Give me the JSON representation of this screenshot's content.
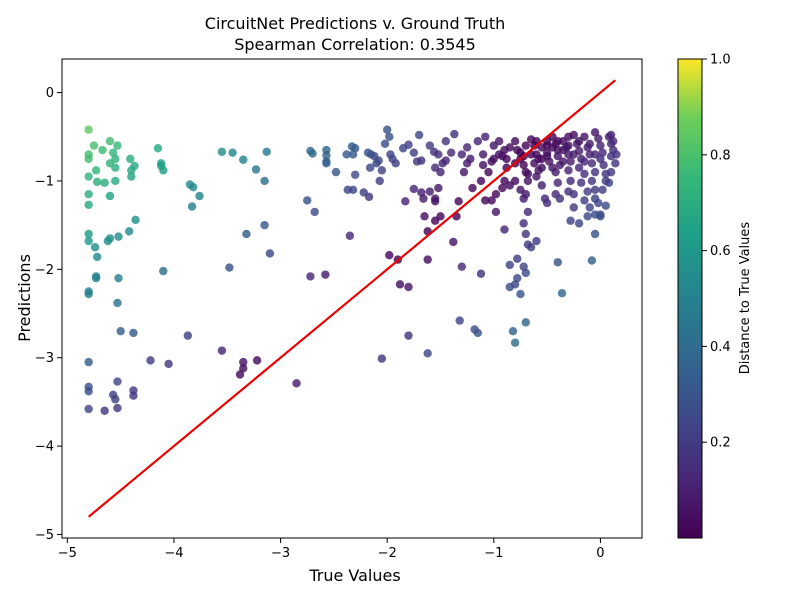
{
  "chart_data": {
    "type": "scatter",
    "title": "CircuitNet Predictions v. Ground Truth",
    "subtitle": "Spearman Correlation: 0.3545",
    "xlabel": "True Values",
    "ylabel": "Predictions",
    "xlim": [
      -5.05,
      0.39
    ],
    "ylim": [
      -5.04,
      0.38
    ],
    "xticks": [
      -5,
      -4,
      -3,
      -2,
      -1,
      0
    ],
    "yticks": [
      -5,
      -4,
      -3,
      -2,
      -1,
      0
    ],
    "xtick_labels": [
      "−5",
      "−4",
      "−3",
      "−2",
      "−1",
      "0"
    ],
    "ytick_labels": [
      "−5",
      "−4",
      "−3",
      "−2",
      "−1",
      "0"
    ],
    "grid": false,
    "colormap": "viridis",
    "colorbar": {
      "label": "Distance to True Values",
      "range": [
        0.0,
        1.0
      ],
      "ticks": [
        0.2,
        0.4,
        0.6,
        0.8,
        1.0
      ],
      "tick_labels": [
        "0.2",
        "0.4",
        "0.6",
        "0.8",
        "1.0"
      ]
    },
    "line": {
      "x": [
        -4.8,
        0.14
      ],
      "y": [
        -4.8,
        0.14
      ],
      "color": "#ee0000"
    },
    "points": [
      [
        -4.8,
        -0.42
      ],
      [
        -4.8,
        -0.7
      ],
      [
        -4.8,
        -0.75
      ],
      [
        -4.8,
        -0.95
      ],
      [
        -4.8,
        -1.15
      ],
      [
        -4.8,
        -1.27
      ],
      [
        -4.8,
        -1.6
      ],
      [
        -4.8,
        -1.68
      ],
      [
        -4.8,
        -2.25
      ],
      [
        -4.8,
        -2.28
      ],
      [
        -4.8,
        -3.05
      ],
      [
        -4.8,
        -3.33
      ],
      [
        -4.8,
        -3.38
      ],
      [
        -4.8,
        -3.58
      ],
      [
        -4.75,
        -0.6
      ],
      [
        -4.73,
        -0.88
      ],
      [
        -4.72,
        -1.01
      ],
      [
        -4.74,
        -1.75
      ],
      [
        -4.72,
        -1.86
      ],
      [
        -4.73,
        -2.08
      ],
      [
        -4.73,
        -2.1
      ],
      [
        -4.67,
        -0.65
      ],
      [
        -4.65,
        -1.02
      ],
      [
        -4.62,
        -1.68
      ],
      [
        -4.6,
        -0.55
      ],
      [
        -4.6,
        -0.8
      ],
      [
        -4.6,
        -1.17
      ],
      [
        -4.6,
        -1.65
      ],
      [
        -4.65,
        -3.6
      ],
      [
        -4.57,
        -0.68
      ],
      [
        -4.55,
        -0.75
      ],
      [
        -4.53,
        -0.6
      ],
      [
        -4.55,
        -0.85
      ],
      [
        -4.55,
        -1.0
      ],
      [
        -4.52,
        -1.63
      ],
      [
        -4.52,
        -2.1
      ],
      [
        -4.53,
        -2.38
      ],
      [
        -4.5,
        -2.7
      ],
      [
        -4.53,
        -3.27
      ],
      [
        -4.53,
        -3.57
      ],
      [
        -4.57,
        -3.42
      ],
      [
        -4.55,
        -3.47
      ],
      [
        -4.41,
        -0.75
      ],
      [
        -4.4,
        -0.95
      ],
      [
        -4.4,
        -0.88
      ],
      [
        -4.37,
        -0.83
      ],
      [
        -4.42,
        -1.57
      ],
      [
        -4.36,
        -1.44
      ],
      [
        -4.38,
        -2.72
      ],
      [
        -4.38,
        -3.37
      ],
      [
        -4.38,
        -3.43
      ],
      [
        -4.15,
        -0.63
      ],
      [
        -4.12,
        -0.8
      ],
      [
        -4.1,
        -0.88
      ],
      [
        -4.12,
        -0.83
      ],
      [
        -4.1,
        -2.02
      ],
      [
        -4.05,
        -3.07
      ],
      [
        -4.22,
        -3.03
      ],
      [
        -3.85,
        -1.04
      ],
      [
        -3.82,
        -1.07
      ],
      [
        -3.76,
        -1.17
      ],
      [
        -3.83,
        -1.29
      ],
      [
        -3.87,
        -2.75
      ],
      [
        -3.55,
        -0.67
      ],
      [
        -3.45,
        -0.68
      ],
      [
        -3.35,
        -0.76
      ],
      [
        -3.23,
        -0.87
      ],
      [
        -3.13,
        -0.67
      ],
      [
        -3.15,
        -1.0
      ],
      [
        -3.15,
        -1.5
      ],
      [
        -3.32,
        -1.6
      ],
      [
        -3.48,
        -1.98
      ],
      [
        -3.1,
        -1.82
      ],
      [
        -3.55,
        -2.92
      ],
      [
        -3.35,
        -3.05
      ],
      [
        -3.35,
        -3.12
      ],
      [
        -3.38,
        -3.19
      ],
      [
        -3.22,
        -3.03
      ],
      [
        -2.85,
        -3.29
      ],
      [
        -2.72,
        -0.66
      ],
      [
        -2.7,
        -0.69
      ],
      [
        -2.57,
        -0.65
      ],
      [
        -2.57,
        -0.71
      ],
      [
        -2.57,
        -0.78
      ],
      [
        -2.57,
        -0.8
      ],
      [
        -2.48,
        -0.9
      ],
      [
        -2.75,
        -1.22
      ],
      [
        -2.68,
        -1.35
      ],
      [
        -2.58,
        -2.06
      ],
      [
        -2.72,
        -2.08
      ],
      [
        -2.33,
        -0.61
      ],
      [
        -2.3,
        -0.63
      ],
      [
        -2.38,
        -0.7
      ],
      [
        -2.32,
        -0.7
      ],
      [
        -2.3,
        -0.93
      ],
      [
        -2.37,
        -1.1
      ],
      [
        -2.32,
        -1.1
      ],
      [
        -2.22,
        -1.13
      ],
      [
        -2.17,
        -1.18
      ],
      [
        -2.35,
        -1.62
      ],
      [
        -2.18,
        -0.68
      ],
      [
        -2.15,
        -0.7
      ],
      [
        -2.12,
        -0.72
      ],
      [
        -2.08,
        -0.77
      ],
      [
        -2.1,
        -0.8
      ],
      [
        -2.16,
        -0.85
      ],
      [
        -2.05,
        -0.88
      ],
      [
        -2.07,
        -1.0
      ],
      [
        -2.05,
        -3.01
      ],
      [
        -2.0,
        -0.42
      ],
      [
        -1.98,
        -0.5
      ],
      [
        -2.02,
        -0.58
      ],
      [
        -1.97,
        -0.7
      ],
      [
        -1.95,
        -0.75
      ],
      [
        -1.92,
        -0.8
      ],
      [
        -1.85,
        -0.63
      ],
      [
        -1.8,
        -0.59
      ],
      [
        -1.75,
        -0.68
      ],
      [
        -1.72,
        -0.78
      ],
      [
        -1.7,
        -0.48
      ],
      [
        -1.68,
        -0.77
      ],
      [
        -1.75,
        -1.09
      ],
      [
        -1.68,
        -1.13
      ],
      [
        -1.66,
        -1.2
      ],
      [
        -1.65,
        -1.4
      ],
      [
        -1.83,
        -1.23
      ],
      [
        -1.62,
        -1.57
      ],
      [
        -1.98,
        -1.84
      ],
      [
        -1.9,
        -1.89
      ],
      [
        -1.62,
        -1.89
      ],
      [
        -1.88,
        -2.17
      ],
      [
        -1.8,
        -2.2
      ],
      [
        -1.8,
        -2.75
      ],
      [
        -1.62,
        -2.95
      ],
      [
        -1.6,
        -0.6
      ],
      [
        -1.56,
        -0.67
      ],
      [
        -1.52,
        -0.7
      ],
      [
        -1.55,
        -0.85
      ],
      [
        -1.5,
        -0.9
      ],
      [
        -1.48,
        -0.8
      ],
      [
        -1.45,
        -0.77
      ],
      [
        -1.4,
        -0.68
      ],
      [
        -1.37,
        -0.47
      ],
      [
        -1.45,
        -0.55
      ],
      [
        -1.6,
        -1.12
      ],
      [
        -1.52,
        -1.08
      ],
      [
        -1.55,
        -1.2
      ],
      [
        -1.55,
        -1.23
      ],
      [
        -1.5,
        -1.4
      ],
      [
        -1.55,
        -1.45
      ],
      [
        -1.38,
        -1.69
      ],
      [
        -1.35,
        -1.4
      ],
      [
        -1.33,
        -1.23
      ],
      [
        -1.3,
        -0.7
      ],
      [
        -1.25,
        -0.8
      ],
      [
        -1.25,
        -0.62
      ],
      [
        -1.22,
        -0.75
      ],
      [
        -1.28,
        -0.9
      ],
      [
        -1.2,
        -1.08
      ],
      [
        -1.3,
        -1.97
      ],
      [
        -1.32,
        -2.58
      ],
      [
        -1.18,
        -2.68
      ],
      [
        -1.15,
        -2.72
      ],
      [
        -1.12,
        -2.05
      ],
      [
        -1.15,
        -0.55
      ],
      [
        -1.08,
        -0.5
      ],
      [
        -1.1,
        -0.7
      ],
      [
        -1.1,
        -0.82
      ],
      [
        -1.05,
        -0.9
      ],
      [
        -1.12,
        -1.0
      ],
      [
        -1.08,
        -1.22
      ],
      [
        -1.02,
        -1.22
      ],
      [
        -1.0,
        -0.6
      ],
      [
        -1.0,
        -0.75
      ],
      [
        -0.98,
        -1.15
      ],
      [
        -0.98,
        -1.35
      ],
      [
        -0.95,
        -0.55
      ],
      [
        -0.92,
        -0.72
      ],
      [
        -0.9,
        -0.65
      ],
      [
        -0.88,
        -0.85
      ],
      [
        -0.9,
        -1.0
      ],
      [
        -0.92,
        -1.08
      ],
      [
        -0.85,
        -1.05
      ],
      [
        -0.8,
        -1.0
      ],
      [
        -0.9,
        -1.55
      ],
      [
        -0.85,
        -1.95
      ],
      [
        -0.78,
        -1.88
      ],
      [
        -0.72,
        -1.97
      ],
      [
        -0.85,
        -2.2
      ],
      [
        -0.8,
        -2.17
      ],
      [
        -0.78,
        -2.1
      ],
      [
        -0.82,
        -2.7
      ],
      [
        -0.8,
        -2.83
      ],
      [
        -0.7,
        -2.6
      ],
      [
        -0.75,
        -2.28
      ],
      [
        -0.8,
        -0.55
      ],
      [
        -0.78,
        -0.65
      ],
      [
        -0.75,
        -0.75
      ],
      [
        -0.72,
        -0.82
      ],
      [
        -0.7,
        -0.9
      ],
      [
        -0.68,
        -1.0
      ],
      [
        -0.75,
        -1.1
      ],
      [
        -0.7,
        -1.15
      ],
      [
        -0.72,
        -1.2
      ],
      [
        -0.68,
        -1.35
      ],
      [
        -0.72,
        -1.48
      ],
      [
        -0.7,
        -1.6
      ],
      [
        -0.65,
        -1.75
      ],
      [
        -0.6,
        -1.68
      ],
      [
        -0.7,
        -2.04
      ],
      [
        -0.68,
        -1.72
      ],
      [
        -0.65,
        -0.53
      ],
      [
        -0.62,
        -0.6
      ],
      [
        -0.6,
        -0.7
      ],
      [
        -0.58,
        -0.75
      ],
      [
        -0.55,
        -0.85
      ],
      [
        -0.6,
        -0.95
      ],
      [
        -0.55,
        -1.05
      ],
      [
        -0.52,
        -1.2
      ],
      [
        -0.5,
        -1.25
      ],
      [
        -0.55,
        -0.62
      ],
      [
        -0.5,
        -0.55
      ],
      [
        -0.5,
        -0.68
      ],
      [
        -0.48,
        -0.78
      ],
      [
        -0.45,
        -0.5
      ],
      [
        -0.42,
        -0.58
      ],
      [
        -0.4,
        -0.65
      ],
      [
        -0.4,
        -0.72
      ],
      [
        -0.38,
        -0.82
      ],
      [
        -0.42,
        -0.9
      ],
      [
        -0.4,
        -1.02
      ],
      [
        -0.42,
        -1.15
      ],
      [
        -0.38,
        -1.2
      ],
      [
        -0.4,
        -1.92
      ],
      [
        -0.36,
        -2.27
      ],
      [
        -0.35,
        -0.55
      ],
      [
        -0.32,
        -0.62
      ],
      [
        -0.3,
        -0.7
      ],
      [
        -0.28,
        -0.78
      ],
      [
        -0.3,
        -0.88
      ],
      [
        -0.28,
        -1.0
      ],
      [
        -0.3,
        -1.12
      ],
      [
        -0.25,
        -1.15
      ],
      [
        -0.25,
        -1.3
      ],
      [
        -0.28,
        -1.45
      ],
      [
        -0.2,
        -1.48
      ],
      [
        -0.25,
        -0.48
      ],
      [
        -0.22,
        -0.58
      ],
      [
        -0.2,
        -0.66
      ],
      [
        -0.18,
        -0.75
      ],
      [
        -0.2,
        -0.85
      ],
      [
        -0.15,
        -0.92
      ],
      [
        -0.18,
        -1.02
      ],
      [
        -0.12,
        -1.12
      ],
      [
        -0.15,
        -1.22
      ],
      [
        -0.1,
        -1.3
      ],
      [
        -0.12,
        -1.4
      ],
      [
        -0.08,
        -1.9
      ],
      [
        -0.15,
        -0.5
      ],
      [
        -0.12,
        -0.62
      ],
      [
        -0.1,
        -0.7
      ],
      [
        -0.08,
        -0.8
      ],
      [
        -0.05,
        -0.9
      ],
      [
        -0.08,
        -1.0
      ],
      [
        -0.05,
        -1.1
      ],
      [
        -0.05,
        -1.2
      ],
      [
        -0.02,
        -1.25
      ],
      [
        -0.05,
        -1.38
      ],
      [
        -0.05,
        -1.6
      ],
      [
        0.0,
        -1.4
      ],
      [
        0.0,
        -1.38
      ],
      [
        -0.05,
        -0.45
      ],
      [
        -0.02,
        -0.52
      ],
      [
        0.0,
        -0.6
      ],
      [
        0.02,
        -0.68
      ],
      [
        0.0,
        -0.75
      ],
      [
        0.03,
        -0.82
      ],
      [
        0.05,
        -0.92
      ],
      [
        0.05,
        -1.0
      ],
      [
        0.02,
        -1.1
      ],
      [
        0.05,
        -1.28
      ],
      [
        0.08,
        -1.02
      ],
      [
        0.1,
        -0.9
      ],
      [
        0.08,
        -0.5
      ],
      [
        0.1,
        -0.58
      ],
      [
        0.12,
        -0.65
      ],
      [
        0.1,
        -0.72
      ],
      [
        0.14,
        -0.8
      ],
      [
        0.15,
        -0.7
      ],
      [
        0.12,
        -0.55
      ],
      [
        0.1,
        -0.48
      ],
      [
        -0.3,
        -0.5
      ],
      [
        -0.35,
        -0.65
      ],
      [
        -0.5,
        -0.6
      ],
      [
        -0.6,
        -0.55
      ],
      [
        -0.7,
        -0.6
      ],
      [
        -0.75,
        -0.68
      ],
      [
        -0.85,
        -0.62
      ],
      [
        -0.95,
        -0.7
      ],
      [
        -1.02,
        -0.78
      ],
      [
        -0.65,
        -0.7
      ],
      [
        -0.45,
        -0.62
      ],
      [
        -0.55,
        -0.75
      ],
      [
        -0.3,
        -0.6
      ],
      [
        -0.2,
        -0.55
      ],
      [
        -0.1,
        -0.58
      ],
      [
        -0.4,
        -0.55
      ],
      [
        -0.5,
        -0.72
      ],
      [
        -0.62,
        -0.8
      ],
      [
        -0.72,
        -0.72
      ],
      [
        -0.8,
        -0.8
      ],
      [
        -0.88,
        -0.75
      ],
      [
        -0.25,
        -0.7
      ],
      [
        -0.15,
        -0.78
      ],
      [
        -0.05,
        -0.7
      ],
      [
        -0.35,
        -0.78
      ],
      [
        -0.45,
        -0.85
      ],
      [
        -0.58,
        -0.88
      ],
      [
        -0.68,
        -0.92
      ]
    ]
  }
}
